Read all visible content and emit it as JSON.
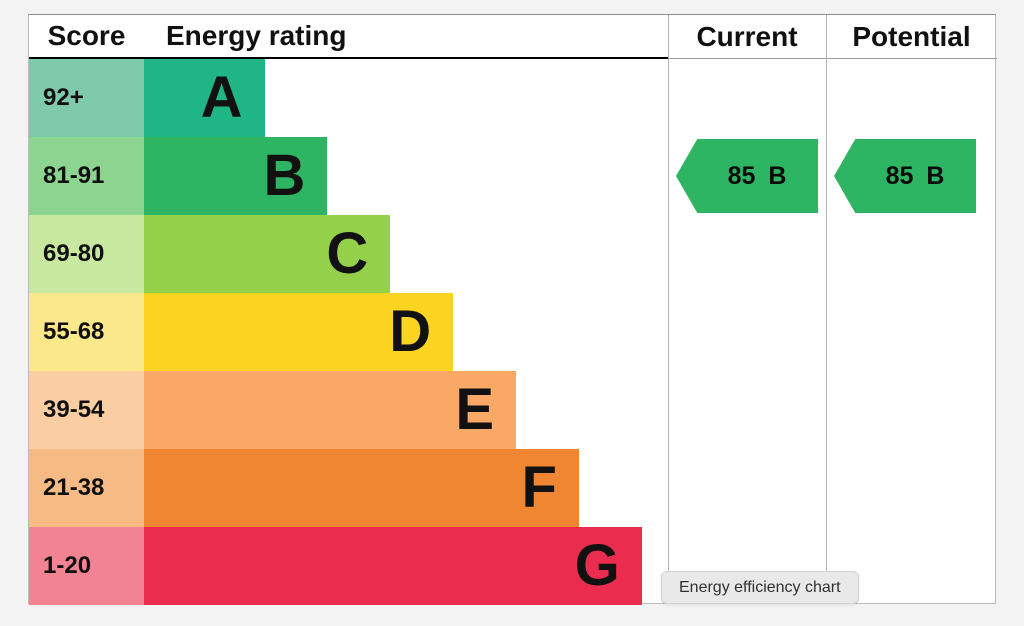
{
  "header": {
    "score": "Score",
    "energy_rating": "Energy rating",
    "current": "Current",
    "potential": "Potential"
  },
  "chart_data": {
    "type": "bar",
    "title": "Energy efficiency chart",
    "categories": [
      "A",
      "B",
      "C",
      "D",
      "E",
      "F",
      "G"
    ],
    "bands": [
      {
        "letter": "A",
        "score": "92+",
        "bar_color": "#20b584",
        "score_color": "#7ecaab",
        "width_pct": 23
      },
      {
        "letter": "B",
        "score": "81-91",
        "bar_color": "#2eb563",
        "score_color": "#8ed491",
        "width_pct": 35
      },
      {
        "letter": "C",
        "score": "69-80",
        "bar_color": "#95d04b",
        "score_color": "#c8e79f",
        "width_pct": 47
      },
      {
        "letter": "D",
        "score": "55-68",
        "bar_color": "#fbd321",
        "score_color": "#fbe88a",
        "width_pct": 59
      },
      {
        "letter": "E",
        "score": "39-54",
        "bar_color": "#faa866",
        "score_color": "#fbcda2",
        "width_pct": 71
      },
      {
        "letter": "F",
        "score": "21-38",
        "bar_color": "#f08632",
        "score_color": "#f6bb85",
        "width_pct": 83
      },
      {
        "letter": "G",
        "score": "1-20",
        "bar_color": "#ea2c4e",
        "score_color": "#f28392",
        "width_pct": 95
      }
    ],
    "current": {
      "value": "85",
      "band": "B",
      "arrow_color": "#2eb563"
    },
    "potential": {
      "value": "85",
      "band": "B",
      "arrow_color": "#2eb563"
    }
  },
  "tooltip": {
    "label": "Energy efficiency chart"
  }
}
